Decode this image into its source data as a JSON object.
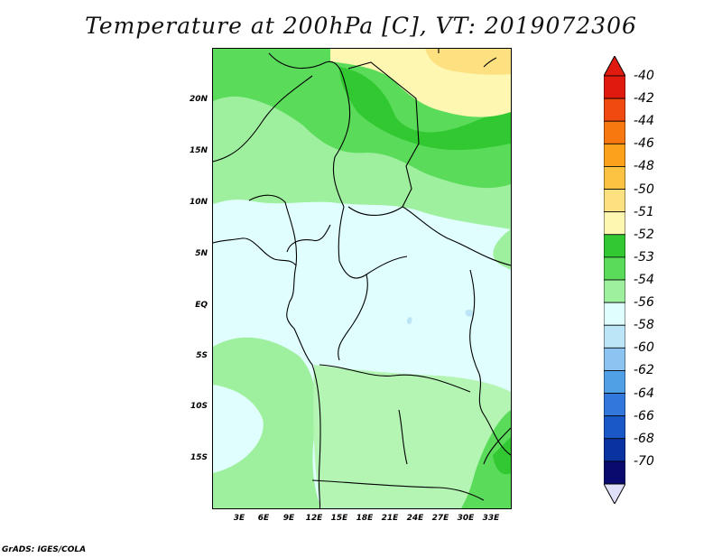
{
  "title": "Temperature at 200hPa [C], VT: 2019072306",
  "footer": "GrADS: IGES/COLA",
  "y_axis": [
    "20N",
    "15N",
    "10N",
    "5N",
    "EQ",
    "5S",
    "10S",
    "15S"
  ],
  "x_axis": [
    "3E",
    "6E",
    "9E",
    "12E",
    "15E",
    "18E",
    "21E",
    "24E",
    "27E",
    "30E",
    "33E"
  ],
  "colorbar": {
    "labels": [
      "-40",
      "-42",
      "-44",
      "-46",
      "-48",
      "-50",
      "-51",
      "-52",
      "-53",
      "-54",
      "-56",
      "-58",
      "-60",
      "-62",
      "-64",
      "-66",
      "-68",
      "-70"
    ],
    "colors": [
      "#e11a10",
      "#f04a10",
      "#f87810",
      "#fba11b",
      "#fbc341",
      "#fde07f",
      "#fdf7b1",
      "#32c832",
      "#5adc5a",
      "#9ef09e",
      "#e0fefe",
      "#bce6f8",
      "#8cc3f0",
      "#50a0e6",
      "#3278dc",
      "#1a58c8",
      "#0a32a0",
      "#0a0a6e"
    ],
    "over_color": "#e11a10",
    "under_color": "#e0e0f8"
  },
  "map_colors": {
    "c54": "#e0fefe",
    "c53": "#9ef09e",
    "c52": "#5adc5a",
    "c51": "#32c832",
    "c50": "#fdf7b1",
    "c48": "#fde07f",
    "c56": "#bce6f8",
    "c53b": "#b4f5b4"
  }
}
